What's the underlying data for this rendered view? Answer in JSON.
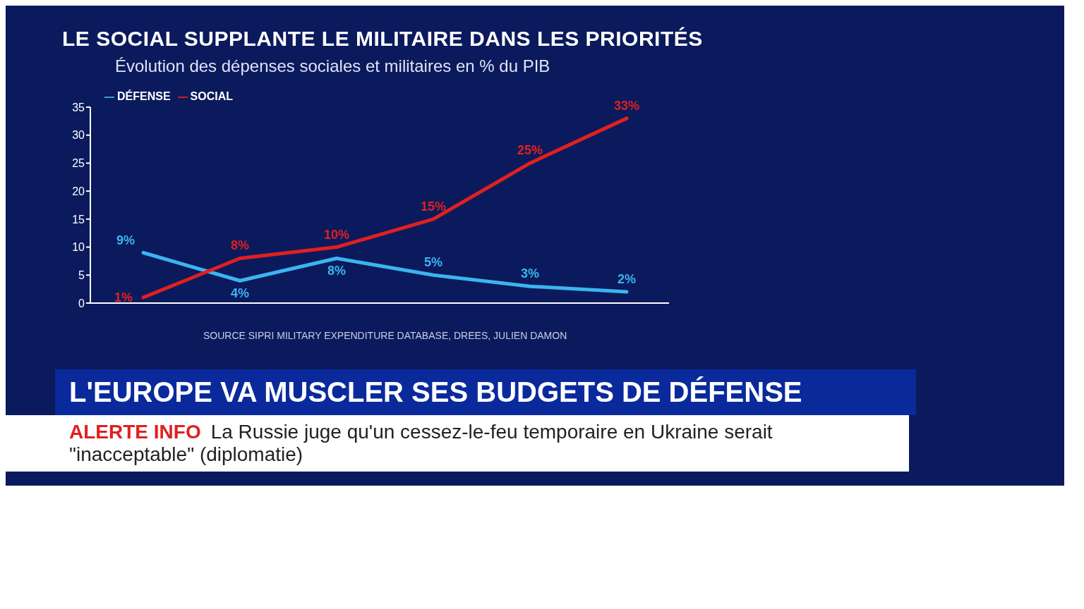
{
  "chart_data": {
    "type": "line",
    "title": "LE SOCIAL SUPPLANTE LE MILITAIRE DANS LES PRIORITÉS",
    "subtitle": "Évolution des dépenses sociales et militaires en % du PIB",
    "categories": [
      null,
      null,
      null,
      null,
      null,
      null
    ],
    "series": [
      {
        "name": "DÉFENSE",
        "color": "#3bb4f0",
        "values": [
          9,
          4,
          8,
          5,
          3,
          2
        ],
        "value_labels": [
          "9%",
          "4%",
          "8%",
          "5%",
          "3%",
          "2%"
        ]
      },
      {
        "name": "SOCIAL",
        "color": "#e02020",
        "values": [
          1,
          8,
          10,
          15,
          25,
          33
        ],
        "value_labels": [
          "1%",
          "8%",
          "10%",
          "15%",
          "25%",
          "33%"
        ]
      }
    ],
    "ylim": [
      0,
      35
    ],
    "yticks": [
      0,
      5,
      10,
      15,
      20,
      25,
      30,
      35
    ],
    "grid": false,
    "legend": "top left",
    "tick_labels": "y",
    "marker": "none",
    "line_style": "solid",
    "annotations": [
      "SOURCE SIPRI MILITARY EXPENDITURE DATABASE, DREES, JULIEN DAMON",
      "L'EUROPE VA MUSCLER SES BUDGETS DE DÉFENSE",
      "ALERTE INFO",
      "La Russie juge qu'un cessez-le-feu temporaire en Ukraine serait \"inacceptable\" (diplomatie)"
    ]
  }
}
